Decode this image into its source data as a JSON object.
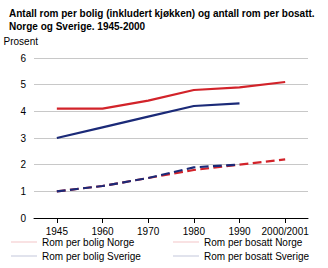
{
  "chart_data": {
    "type": "line",
    "title": "Antall rom per bolig (inkludert kjøkken) og antall rom per bosatt. Norge og Sverige. 1945-2000",
    "y_label": "Prosent",
    "categories": [
      "1945",
      "1960",
      "1970",
      "1980",
      "1990",
      "2000/2001"
    ],
    "series": [
      {
        "name": "Rom per bolig Norge",
        "color": "#d2232a",
        "line_style": "solid",
        "values": [
          4.1,
          4.1,
          4.4,
          4.8,
          4.9,
          5.1
        ]
      },
      {
        "name": "Rom per bosatt Norge",
        "color": "#d2232a",
        "line_style": "dashed",
        "values": [
          1.0,
          1.2,
          1.5,
          1.8,
          2.0,
          2.2
        ]
      },
      {
        "name": "Rom per bolig Sverige",
        "color": "#1b2a78",
        "line_style": "solid",
        "values": [
          3.0,
          3.4,
          3.8,
          4.2,
          4.3,
          null
        ]
      },
      {
        "name": "Rom per bosatt Sverige",
        "color": "#1b2a78",
        "line_style": "dashed",
        "values": [
          1.0,
          1.2,
          1.5,
          1.9,
          2.0,
          null
        ]
      }
    ],
    "ylim": [
      0,
      6
    ],
    "yticks": [
      0,
      1,
      2,
      3,
      4,
      5,
      6
    ],
    "grid": true,
    "legend": "bottom"
  }
}
